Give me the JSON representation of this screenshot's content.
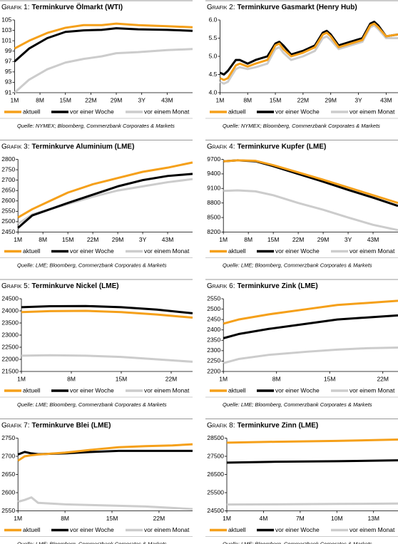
{
  "chart_data": [
    {
      "type": "line",
      "label": "Grafik 1:",
      "title": "Terminkurve Ölmarkt (WTI)",
      "x": [
        1,
        5,
        10,
        15,
        20,
        25,
        29,
        35,
        43,
        50
      ],
      "xlim": [
        1,
        50
      ],
      "xticks": [
        {
          "value": 1,
          "label": "1M"
        },
        {
          "value": 8,
          "label": "8M"
        },
        {
          "value": 15,
          "label": "15M"
        },
        {
          "value": 22,
          "label": "22M"
        },
        {
          "value": 29,
          "label": "29M"
        },
        {
          "value": 36,
          "label": "3Y"
        },
        {
          "value": 43,
          "label": "43M"
        }
      ],
      "ylim": [
        91,
        105
      ],
      "yticks": [
        91,
        93,
        95,
        97,
        99,
        101,
        103,
        105
      ],
      "series": [
        {
          "name": "aktuell",
          "color": "#f5a01a",
          "values": [
            99.5,
            101,
            102.5,
            103.5,
            104,
            104,
            104.3,
            104,
            103.8,
            103.6
          ]
        },
        {
          "name": "vor einer Woche",
          "color": "#000000",
          "values": [
            97,
            99.5,
            101.5,
            102.7,
            103,
            103.1,
            103.4,
            103.2,
            103.1,
            102.9
          ]
        },
        {
          "name": "vor einem Monat",
          "color": "#cccccc",
          "values": [
            91,
            93.5,
            95.5,
            96.8,
            97.5,
            98,
            98.6,
            98.8,
            99.2,
            99.4
          ]
        }
      ],
      "source": "Quelle: NYMEX; Bloomberg, Commerzbank Corporates & Markets"
    },
    {
      "type": "line",
      "label": "Grafik 2:",
      "title": "Terminkurve Gasmarkt (Henry Hub)",
      "x": [
        1,
        2,
        3,
        5,
        6,
        8,
        10,
        13,
        15,
        16,
        17,
        19,
        22,
        25,
        27,
        28,
        29,
        31,
        34,
        37,
        39,
        40,
        41,
        43,
        46
      ],
      "xlim": [
        1,
        46
      ],
      "xticks": [
        {
          "value": 1,
          "label": "1M"
        },
        {
          "value": 8,
          "label": "8M"
        },
        {
          "value": 15,
          "label": "15M"
        },
        {
          "value": 22,
          "label": "22M"
        },
        {
          "value": 29,
          "label": "29M"
        },
        {
          "value": 36,
          "label": "3Y"
        },
        {
          "value": 43,
          "label": "43M"
        }
      ],
      "ylim": [
        4.0,
        6.0
      ],
      "yticks": [
        {
          "value": 4.0,
          "label": "4.0"
        },
        4.5,
        {
          "value": 5.0,
          "label": "5.0"
        },
        5.5,
        {
          "value": 6.0,
          "label": "6.0"
        }
      ],
      "series": [
        {
          "name": "aktuell",
          "color": "#f5a01a",
          "values": [
            4.4,
            4.35,
            4.4,
            4.75,
            4.8,
            4.72,
            4.8,
            4.9,
            5.3,
            5.35,
            5.2,
            5.0,
            5.1,
            5.25,
            5.6,
            5.65,
            5.55,
            5.25,
            5.35,
            5.45,
            5.85,
            5.9,
            5.8,
            5.55,
            5.6
          ]
        },
        {
          "name": "vor einer Woche",
          "color": "#000000",
          "values": [
            4.55,
            4.5,
            4.6,
            4.9,
            4.9,
            4.8,
            4.9,
            5.0,
            5.35,
            5.4,
            5.3,
            5.05,
            5.15,
            5.3,
            5.65,
            5.7,
            5.6,
            5.3,
            5.4,
            5.5,
            5.9,
            5.95,
            5.85,
            5.55,
            5.6
          ]
        },
        {
          "name": "vor einem Monat",
          "color": "#cccccc",
          "values": [
            4.3,
            4.25,
            4.3,
            4.65,
            4.7,
            4.65,
            4.7,
            4.8,
            5.2,
            5.25,
            5.1,
            4.9,
            5.0,
            5.15,
            5.5,
            5.55,
            5.45,
            5.2,
            5.3,
            5.4,
            5.8,
            5.85,
            5.75,
            5.5,
            5.5
          ]
        }
      ],
      "source": "Quelle: NYMEX; Bloomberg, Commerzbank Corporates & Markets"
    },
    {
      "type": "line",
      "label": "Grafik 3:",
      "title": "Terminkurve Aluminium (LME)",
      "x": [
        1,
        5,
        10,
        15,
        22,
        29,
        36,
        43,
        50
      ],
      "xlim": [
        1,
        50
      ],
      "xticks": [
        {
          "value": 1,
          "label": "1M"
        },
        {
          "value": 8,
          "label": "8M"
        },
        {
          "value": 15,
          "label": "15M"
        },
        {
          "value": 22,
          "label": "22M"
        },
        {
          "value": 29,
          "label": "29M"
        },
        {
          "value": 36,
          "label": "3Y"
        },
        {
          "value": 43,
          "label": "43M"
        }
      ],
      "ylim": [
        2450,
        2800
      ],
      "yticks": [
        2450,
        2500,
        2550,
        2600,
        2650,
        2700,
        2750,
        2800
      ],
      "series": [
        {
          "name": "aktuell",
          "color": "#f5a01a",
          "values": [
            2520,
            2560,
            2600,
            2640,
            2680,
            2710,
            2740,
            2760,
            2785
          ]
        },
        {
          "name": "vor einer Woche",
          "color": "#000000",
          "values": [
            2470,
            2530,
            2560,
            2590,
            2630,
            2670,
            2700,
            2720,
            2730
          ]
        },
        {
          "name": "vor einem Monat",
          "color": "#cccccc",
          "values": [
            2490,
            2535,
            2560,
            2585,
            2620,
            2650,
            2670,
            2690,
            2705
          ]
        }
      ],
      "source": "Quelle: LME; Bloomberg, Commerzbank Corporates & Markets"
    },
    {
      "type": "line",
      "label": "Grafik 4:",
      "title": "Terminkurve Kupfer (LME)",
      "x": [
        1,
        5,
        10,
        15,
        22,
        29,
        36,
        43,
        50
      ],
      "xlim": [
        1,
        50
      ],
      "xticks": [
        {
          "value": 1,
          "label": "1M"
        },
        {
          "value": 8,
          "label": "8M"
        },
        {
          "value": 15,
          "label": "15M"
        },
        {
          "value": 22,
          "label": "22M"
        },
        {
          "value": 29,
          "label": "29M"
        },
        {
          "value": 36,
          "label": "3Y"
        },
        {
          "value": 43,
          "label": "43M"
        }
      ],
      "ylim": [
        8200,
        9700
      ],
      "yticks": [
        8200,
        8500,
        8800,
        9100,
        9400,
        9700
      ],
      "series": [
        {
          "name": "aktuell",
          "color": "#f5a01a",
          "values": [
            9660,
            9680,
            9670,
            9580,
            9430,
            9280,
            9120,
            8960,
            8800
          ]
        },
        {
          "name": "vor einer Woche",
          "color": "#000000",
          "values": [
            9660,
            9680,
            9660,
            9560,
            9400,
            9240,
            9070,
            8910,
            8740
          ]
        },
        {
          "name": "vor einem Monat",
          "color": "#cccccc",
          "values": [
            9050,
            9060,
            9040,
            8960,
            8800,
            8660,
            8500,
            8350,
            8240
          ]
        }
      ],
      "source": "Quelle: LME; Bloomberg, Commerzbank Corporates & Markets"
    },
    {
      "type": "line",
      "label": "Grafik 5:",
      "title": "Terminkurve Nickel (LME)",
      "x": [
        1,
        5,
        10,
        15,
        20,
        25
      ],
      "xlim": [
        1,
        25
      ],
      "xticks": [
        {
          "value": 1,
          "label": "1M"
        },
        {
          "value": 8,
          "label": "8M"
        },
        {
          "value": 15,
          "label": "15M"
        },
        {
          "value": 22,
          "label": "22M"
        }
      ],
      "ylim": [
        21500,
        24500
      ],
      "yticks": [
        21500,
        22000,
        22500,
        23000,
        23500,
        24000,
        24500
      ],
      "series": [
        {
          "name": "aktuell",
          "color": "#f5a01a",
          "values": [
            23950,
            23990,
            24000,
            23950,
            23850,
            23720
          ]
        },
        {
          "name": "vor einer Woche",
          "color": "#000000",
          "values": [
            24150,
            24190,
            24200,
            24150,
            24050,
            23900
          ]
        },
        {
          "name": "vor einem Monat",
          "color": "#cccccc",
          "values": [
            22150,
            22170,
            22150,
            22100,
            22000,
            21900
          ]
        }
      ],
      "source": "Quelle: LME; Bloomberg, Commerzbank Corporates & Markets"
    },
    {
      "type": "line",
      "label": "Grafik 6:",
      "title": "Terminkurve Zink (LME)",
      "x": [
        1,
        3,
        7,
        12,
        16,
        20,
        24
      ],
      "xlim": [
        1,
        24
      ],
      "xticks": [
        {
          "value": 1,
          "label": "1M"
        },
        {
          "value": 8,
          "label": "8M"
        },
        {
          "value": 15,
          "label": "15M"
        },
        {
          "value": 22,
          "label": "22M"
        }
      ],
      "ylim": [
        2200,
        2550
      ],
      "yticks": [
        2200,
        2250,
        2300,
        2350,
        2400,
        2450,
        2500,
        2550
      ],
      "series": [
        {
          "name": "aktuell",
          "color": "#f5a01a",
          "values": [
            2430,
            2450,
            2475,
            2500,
            2520,
            2530,
            2540
          ]
        },
        {
          "name": "vor einer Woche",
          "color": "#000000",
          "values": [
            2360,
            2380,
            2405,
            2430,
            2450,
            2460,
            2470
          ]
        },
        {
          "name": "vor einem Monat",
          "color": "#cccccc",
          "values": [
            2240,
            2260,
            2280,
            2295,
            2305,
            2312,
            2315
          ]
        }
      ],
      "source": "Quelle: LME; Bloomberg, Commerzbank Corporates & Markets"
    },
    {
      "type": "line",
      "label": "Grafik 7:",
      "title": "Terminkurve Blei (LME)",
      "x": [
        1,
        2,
        3,
        4,
        8,
        12,
        16,
        20,
        24,
        27
      ],
      "xlim": [
        1,
        27
      ],
      "xticks": [
        {
          "value": 1,
          "label": "1M"
        },
        {
          "value": 8,
          "label": "8M"
        },
        {
          "value": 15,
          "label": "15M"
        },
        {
          "value": 22,
          "label": "22M"
        }
      ],
      "ylim": [
        2550,
        2750
      ],
      "yticks": [
        2550,
        2600,
        2650,
        2700,
        2750
      ],
      "series": [
        {
          "name": "aktuell",
          "color": "#f5a01a",
          "values": [
            2688,
            2700,
            2703,
            2705,
            2710,
            2718,
            2725,
            2728,
            2730,
            2733
          ]
        },
        {
          "name": "vor einer Woche",
          "color": "#000000",
          "values": [
            2705,
            2712,
            2708,
            2706,
            2708,
            2712,
            2715,
            2715,
            2715,
            2715
          ]
        },
        {
          "name": "vor einem Monat",
          "color": "#cccccc",
          "values": [
            2575,
            2580,
            2587,
            2572,
            2568,
            2566,
            2564,
            2562,
            2558,
            2555
          ]
        }
      ],
      "source": "Quelle: LME; Bloomberg, Commerzbank Corporates & Markets"
    },
    {
      "type": "line",
      "label": "Grafik 8:",
      "title": "Terminkurve Zinn (LME)",
      "x": [
        1,
        5,
        10,
        15
      ],
      "xlim": [
        1,
        15
      ],
      "xticks": [
        {
          "value": 1,
          "label": "1M"
        },
        {
          "value": 4,
          "label": "4M"
        },
        {
          "value": 7,
          "label": "7M"
        },
        {
          "value": 10,
          "label": "10M"
        },
        {
          "value": 13,
          "label": "13M"
        }
      ],
      "ylim": [
        24500,
        28500
      ],
      "yticks": [
        24500,
        25500,
        26500,
        27500,
        28500
      ],
      "series": [
        {
          "name": "aktuell",
          "color": "#f5a01a",
          "values": [
            28250,
            28300,
            28350,
            28420
          ]
        },
        {
          "name": "vor einer Woche",
          "color": "#000000",
          "values": [
            27150,
            27200,
            27230,
            27280
          ]
        },
        {
          "name": "vor einem Monat",
          "color": "#cccccc",
          "values": [
            24850,
            24860,
            24880,
            24900
          ]
        }
      ],
      "source": "Quelle: LME; Bloomberg, Commerzbank Corporates & Markets"
    }
  ]
}
